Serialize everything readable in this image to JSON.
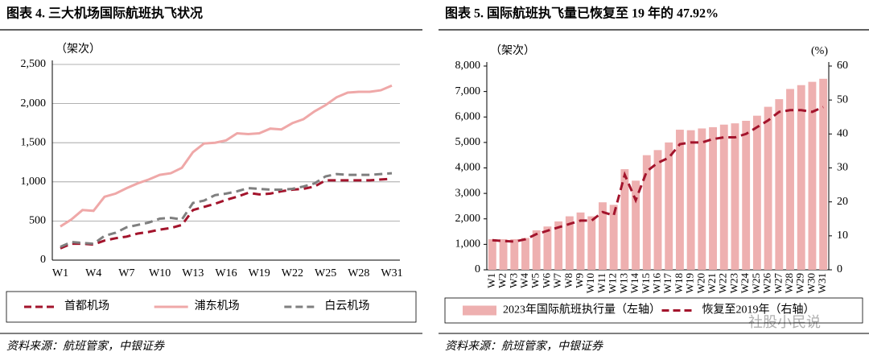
{
  "chart_data": [
    {
      "type": "line",
      "title": "图表 4. 三大机场国际航班执飞状况",
      "ylabel": "（架次）",
      "source": "资料来源：航班管家，中银证券",
      "categories": [
        "W1",
        null,
        null,
        "W4",
        null,
        null,
        "W7",
        null,
        null,
        "W10",
        null,
        null,
        "W13",
        null,
        null,
        "W16",
        null,
        null,
        "W19",
        null,
        null,
        "W22",
        null,
        null,
        "W25",
        null,
        null,
        "W28",
        null,
        null,
        "W31"
      ],
      "ylim": [
        0,
        2500
      ],
      "yticks": [
        0,
        500,
        {
          "value": 1000,
          "label": "1,000"
        },
        {
          "value": 1500,
          "label": "1,500"
        },
        {
          "value": 2000,
          "label": "2,000"
        },
        {
          "value": 2500,
          "label": "2,500"
        }
      ],
      "grid": true,
      "series": [
        {
          "name": "首都机场",
          "color": "#a3142c",
          "dash": true,
          "values": [
            150,
            210,
            210,
            200,
            250,
            280,
            300,
            340,
            360,
            390,
            410,
            450,
            640,
            680,
            720,
            770,
            810,
            860,
            840,
            850,
            880,
            900,
            910,
            940,
            1020,
            1020,
            1020,
            1020,
            1020,
            1030,
            1040
          ]
        },
        {
          "name": "浦东机场",
          "color": "#efa8a8",
          "dash": false,
          "values": [
            430,
            520,
            640,
            630,
            810,
            850,
            920,
            980,
            1030,
            1090,
            1110,
            1180,
            1380,
            1490,
            1500,
            1530,
            1620,
            1610,
            1620,
            1680,
            1670,
            1750,
            1800,
            1900,
            1980,
            2080,
            2140,
            2150,
            2150,
            2170,
            2230
          ]
        },
        {
          "name": "白云机场",
          "color": "#7f7f7f",
          "dash": true,
          "values": [
            170,
            230,
            220,
            210,
            310,
            350,
            420,
            450,
            480,
            530,
            540,
            520,
            730,
            760,
            830,
            850,
            880,
            920,
            910,
            900,
            900,
            910,
            940,
            980,
            1070,
            1100,
            1090,
            1090,
            1090,
            1100,
            1110
          ]
        }
      ]
    },
    {
      "type": "bar-line",
      "title": "图表 5. 国际航班执飞量已恢复至 19 年的 47.92%",
      "ylabel": "（架次）",
      "y2label": "(%)",
      "source": "资料来源：航班管家，中银证券",
      "categories": [
        "W1",
        "W2",
        "W3",
        "W4",
        "W5",
        "W6",
        "W7",
        "W8",
        "W9",
        "W10",
        "W11",
        "W12",
        "W13",
        "W14",
        "W15",
        "W16",
        "W17",
        "W18",
        "W19",
        "W20",
        "W21",
        "W22",
        "W23",
        "W24",
        "W25",
        "W26",
        "W27",
        "W28",
        "W29",
        "W30",
        "W31"
      ],
      "ylim": [
        0,
        8000
      ],
      "yticks": [
        0,
        {
          "value": 1000,
          "label": "1,000"
        },
        {
          "value": 2000,
          "label": "2,000"
        },
        {
          "value": 3000,
          "label": "3,000"
        },
        {
          "value": 4000,
          "label": "4,000"
        },
        {
          "value": 5000,
          "label": "5,000"
        },
        {
          "value": 6000,
          "label": "6,000"
        },
        {
          "value": 7000,
          "label": "7,000"
        },
        {
          "value": 8000,
          "label": "8,000"
        }
      ],
      "y2lim": [
        0,
        60
      ],
      "y2ticks": [
        0,
        10,
        20,
        30,
        40,
        50,
        60
      ],
      "grid": false,
      "series": [
        {
          "name": "2023年国际航班执行量（左轴）",
          "type": "bar",
          "color": "#eeb0b0",
          "values": [
            1200,
            1200,
            1200,
            1250,
            1550,
            1700,
            1900,
            2100,
            2250,
            2100,
            2650,
            2550,
            3950,
            3500,
            4500,
            4700,
            5000,
            5500,
            5480,
            5550,
            5600,
            5700,
            5750,
            5850,
            6050,
            6400,
            6700,
            7100,
            7250,
            7380,
            7500
          ]
        },
        {
          "name": "恢复至2019年（右轴）",
          "type": "line",
          "axis": "y2",
          "color": "#a3142c",
          "dash": true,
          "values": [
            8.7,
            8.5,
            8.3,
            9,
            10.5,
            11.5,
            12.5,
            13.5,
            14.5,
            14.5,
            17,
            16,
            28,
            20.5,
            29,
            31.5,
            33,
            37,
            37.5,
            37.5,
            38.5,
            39,
            39,
            40,
            42,
            44,
            46.5,
            47,
            47,
            46.5,
            47.92
          ]
        }
      ]
    }
  ],
  "watermark": "社股小民说"
}
